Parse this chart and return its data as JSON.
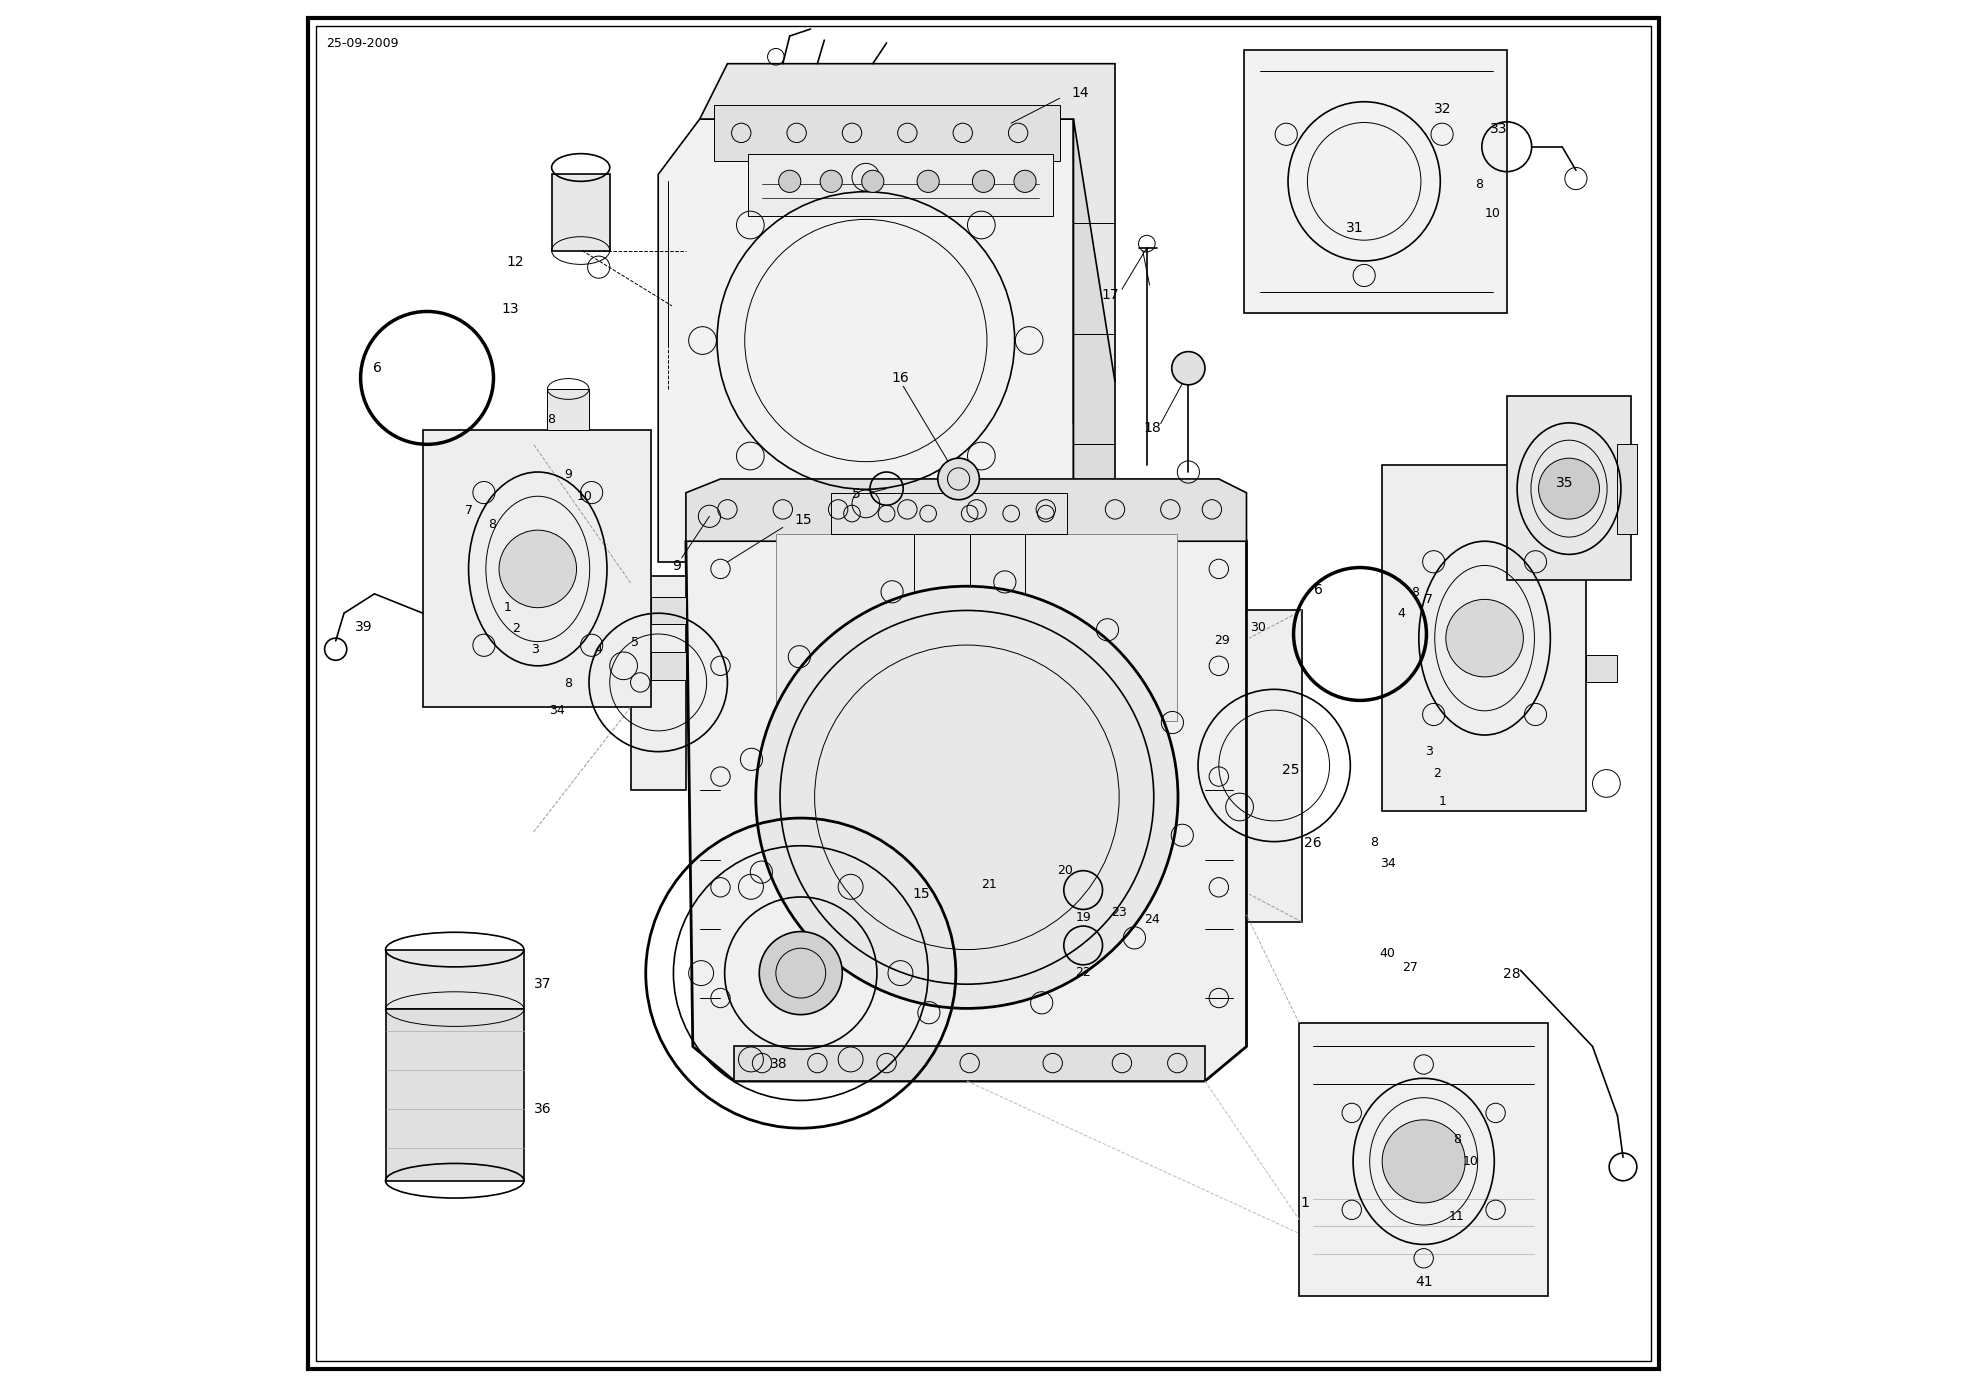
{
  "date": "25-09-2009",
  "background_color": "#ffffff",
  "line_color": "#000000",
  "text_color": "#000000",
  "fig_width": 19.67,
  "fig_height": 13.87,
  "dpi": 100
}
